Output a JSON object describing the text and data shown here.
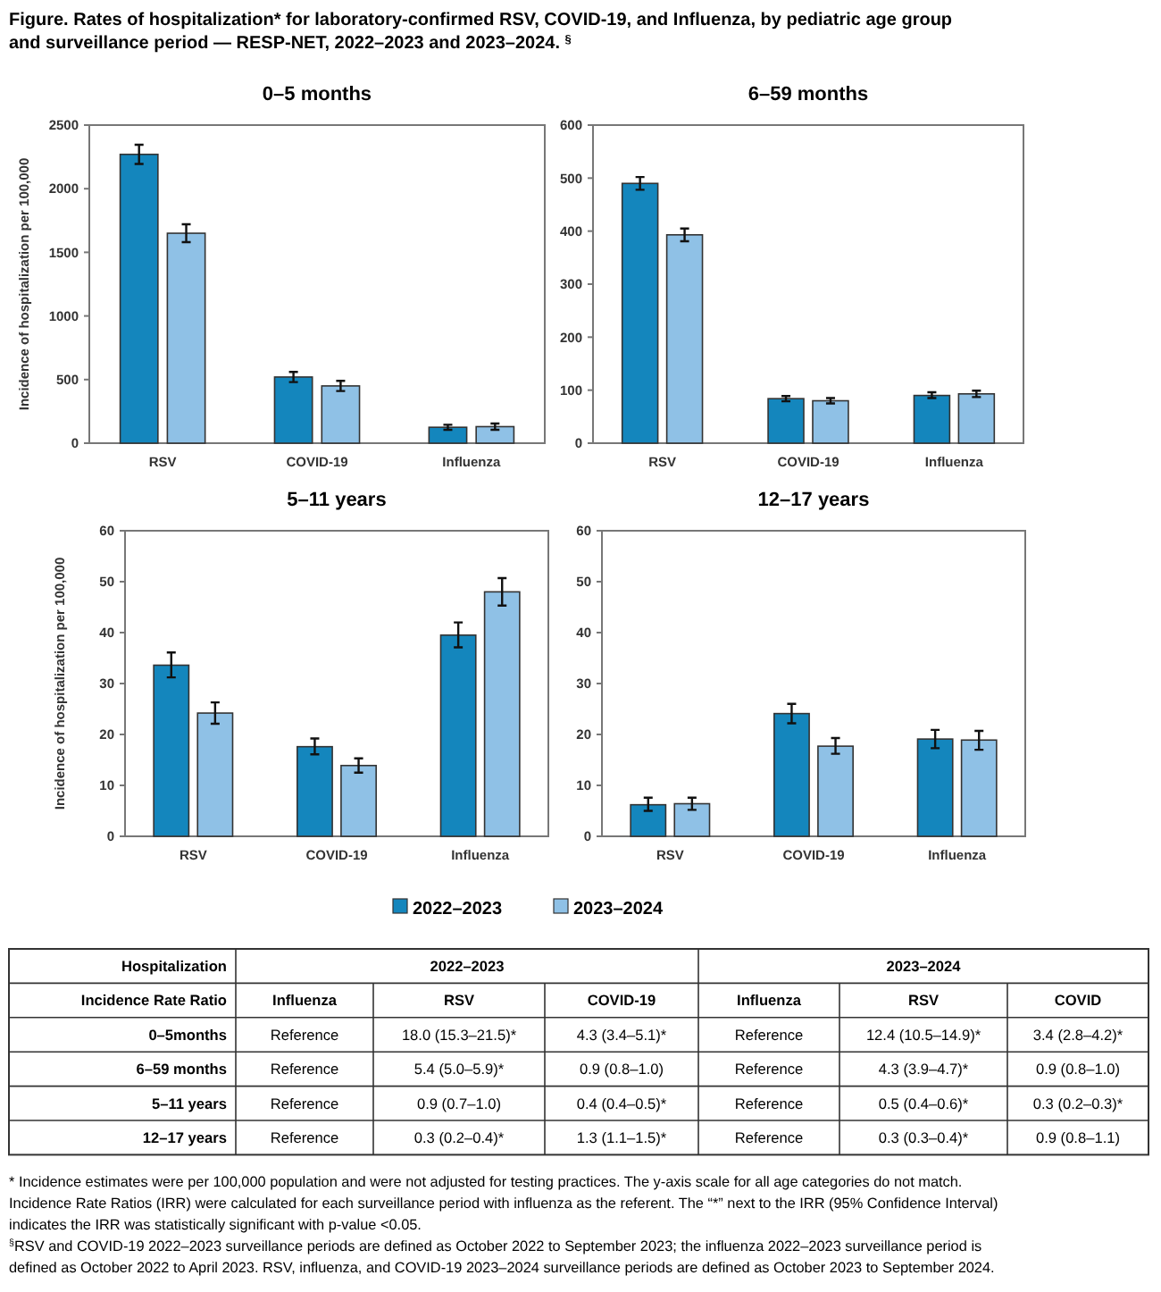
{
  "chart_data": [
    {
      "type": "other",
      "title": "Figure. Rates of hospitalization* for laboratory-confirmed RSV, COVID-19, and Influenza, by pediatric age group and surveillance period — RESP-NET, 2022–2023 and 2023–2024. $^{§}$"
    },
    {
      "type": "bar",
      "title": "0–5 months",
      "ylabel": "Incidence of hospitalization per 100,000",
      "categories": [
        "RSV",
        "COVID-19",
        "Influenza"
      ],
      "ylim": [
        0,
        2500
      ],
      "yticks": [
        0,
        500,
        1000,
        1500,
        2000,
        2500
      ],
      "series": [
        {
          "color": "#1486bd",
          "values": [
            2270,
            520,
            125
          ],
          "errors": [
            [
              2195,
              2345
            ],
            [
              480,
              560
            ],
            [
              105,
              145
            ]
          ]
        },
        {
          "color": "#8fc1e6",
          "values": [
            1650,
            450,
            130
          ],
          "errors": [
            [
              1580,
              1720
            ],
            [
              410,
              490
            ],
            [
              105,
              155
            ]
          ]
        }
      ]
    },
    {
      "type": "bar",
      "title": "6–59 months",
      "categories": [
        "RSV",
        "COVID-19",
        "Influenza"
      ],
      "ylim": [
        0,
        600
      ],
      "yticks": [
        0,
        100,
        200,
        300,
        400,
        500,
        600
      ],
      "series": [
        {
          "color": "#1486bd",
          "values": [
            490,
            84,
            90
          ],
          "errors": [
            [
              478,
              502
            ],
            [
              79,
              89
            ],
            [
              85,
              96
            ]
          ]
        },
        {
          "color": "#8fc1e6",
          "values": [
            393,
            80,
            93
          ],
          "errors": [
            [
              381,
              405
            ],
            [
              75,
              85
            ],
            [
              87,
              99
            ]
          ]
        }
      ]
    },
    {
      "type": "bar",
      "title": "5–11 years",
      "ylabel": "Incidence of hospitalization per 100,000",
      "categories": [
        "RSV",
        "COVID-19",
        "Influenza"
      ],
      "ylim": [
        0,
        60
      ],
      "yticks": [
        0,
        10,
        20,
        30,
        40,
        50,
        60
      ],
      "legend": "bottom",
      "series": [
        {
          "name": "2022–2023",
          "color": "#1486bd",
          "values": [
            33.6,
            17.6,
            39.5
          ],
          "errors": [
            [
              31.2,
              36.1
            ],
            [
              16.1,
              19.2
            ],
            [
              37.1,
              42
            ]
          ]
        },
        {
          "name": "2023–2024",
          "color": "#8fc1e6",
          "values": [
            24.2,
            13.9,
            48
          ],
          "errors": [
            [
              22.1,
              26.3
            ],
            [
              12.5,
              15.3
            ],
            [
              45.3,
              50.7
            ]
          ]
        }
      ]
    },
    {
      "type": "bar",
      "title": "12–17 years",
      "categories": [
        "RSV",
        "COVID-19",
        "Influenza"
      ],
      "ylim": [
        0,
        60
      ],
      "yticks": [
        0,
        10,
        20,
        30,
        40,
        50,
        60
      ],
      "series": [
        {
          "color": "#1486bd",
          "values": [
            6.2,
            24.1,
            19.1
          ],
          "errors": [
            [
              5,
              7.6
            ],
            [
              22.2,
              26
            ],
            [
              17.3,
              20.9
            ]
          ]
        },
        {
          "color": "#8fc1e6",
          "values": [
            6.4,
            17.7,
            18.9
          ],
          "errors": [
            [
              5.2,
              7.6
            ],
            [
              16.2,
              19.3
            ],
            [
              17,
              20.7
            ]
          ]
        }
      ]
    },
    {
      "type": "other",
      "title": "Hospitalization",
      "ylabel": "Incidence Rate Ratio",
      "annotations": [
        "2022–2023",
        "2023–2024"
      ],
      "categories": [
        "Influenza",
        "RSV",
        "COVID-19",
        "Influenza",
        "RSV",
        "COVID"
      ],
      "y_categories": [
        "0–5months",
        "6–59 months",
        "5–11 years",
        "12–17 years"
      ],
      "cell_labels": [
        [
          "Reference",
          "18.0 (15.3–21.5)*",
          "4.3 (3.4–5.1)*",
          "Reference",
          "12.4 (10.5–14.9)*",
          "3.4 (2.8–4.2)*"
        ],
        [
          "Reference",
          "5.4 (5.0–5.9)*",
          "0.9 (0.8–1.0)",
          "Reference",
          "4.3 (3.9–4.7)*",
          "0.9 (0.8–1.0)"
        ],
        [
          "Reference",
          "0.9 (0.7–1.0)",
          "0.4 (0.4–0.5)*",
          "Reference",
          "0.5 (0.4–0.6)*",
          "0.3 (0.2–0.3)*"
        ],
        [
          "Reference",
          "0.3 (0.2–0.4)*",
          "1.3 (1.1–1.5)*",
          "Reference",
          "0.3 (0.3–0.4)*",
          "0.9 (0.8–1.1)"
        ]
      ]
    },
    {
      "type": "other",
      "annotations": [
        "* Incidence estimates were per 100,000 population and were not adjusted for testing practices. The y-axis scale for all age categories do not match.",
        "Incidence Rate Ratios (IRR) were calculated for each surveillance period with influenza as the referent. The “*” next to the IRR (95% Confidence Interval)",
        "indicates the IRR was statistically significant with p-value <0.05.",
        "$^{§}$RSV and COVID-19 2022–2023 surveillance periods are defined as October 2022 to September 2023; the influenza 2022–2023 surveillance period is",
        "defined as October 2022 to April 2023. RSV, influenza, and COVID-19 2023–2024 surveillance periods are defined as October 2023 to September 2024."
      ]
    }
  ]
}
